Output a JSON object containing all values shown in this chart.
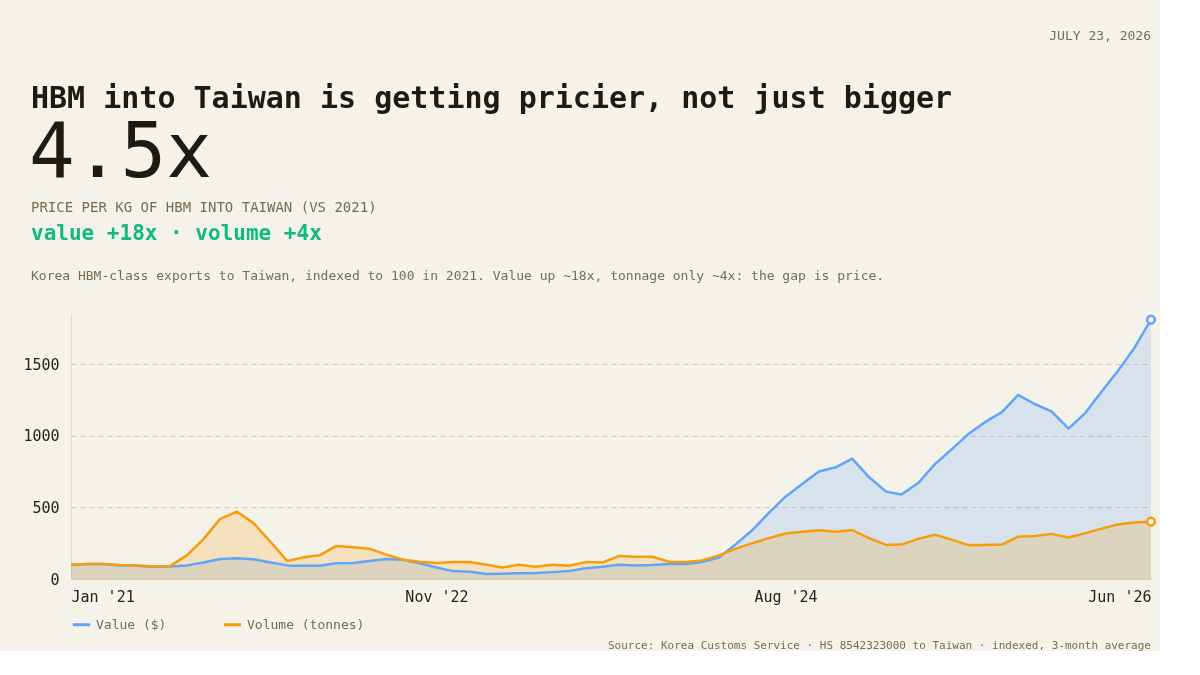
{
  "chart_data": {
    "type": "area",
    "title": "HBM into Taiwan is getting pricier, not just bigger",
    "annotations": [
      "JULY 23, 2026",
      "4.5x",
      "PRICE PER KG OF HBM INTO TAIWAN (VS 2021)",
      "value +18x · volume +4x",
      "Korea HBM-class exports to Taiwan, indexed to 100 in 2021. Value up ~18x, tonnage only ~4x: the gap is price.",
      "Source: Korea Customs Service · HS 8542323000 to Taiwan · indexed, 3-month average"
    ],
    "x": [
      "2021-01",
      "2021-02",
      "2021-03",
      "2021-04",
      "2021-05",
      "2021-06",
      "2021-07",
      "2021-08",
      "2021-09",
      "2021-10",
      "2021-11",
      "2021-12",
      "2022-01",
      "2022-02",
      "2022-03",
      "2022-04",
      "2022-05",
      "2022-06",
      "2022-07",
      "2022-08",
      "2022-09",
      "2022-10",
      "2022-11",
      "2022-12",
      "2023-01",
      "2023-02",
      "2023-03",
      "2023-04",
      "2023-05",
      "2023-06",
      "2023-07",
      "2023-08",
      "2023-09",
      "2023-10",
      "2023-11",
      "2023-12",
      "2024-01",
      "2024-02",
      "2024-03",
      "2024-04",
      "2024-05",
      "2024-06",
      "2024-07",
      "2024-08",
      "2024-09",
      "2024-10",
      "2024-11",
      "2024-12",
      "2025-01",
      "2025-02",
      "2025-03",
      "2025-04",
      "2025-05",
      "2025-06",
      "2025-07",
      "2025-08",
      "2025-09",
      "2025-10",
      "2025-11",
      "2025-12",
      "2026-01",
      "2026-02",
      "2026-03",
      "2026-04",
      "2026-05",
      "2026-06"
    ],
    "series": [
      {
        "name": "Value ($)",
        "color": "#60a5fa",
        "values": [
          100,
          104,
          104,
          95,
          92,
          85,
          88,
          95,
          115,
          140,
          145,
          138,
          115,
          95,
          93,
          93,
          110,
          112,
          125,
          140,
          135,
          110,
          80,
          55,
          50,
          35,
          37,
          40,
          42,
          48,
          55,
          75,
          85,
          100,
          95,
          98,
          105,
          105,
          118,
          150,
          240,
          340,
          460,
          575,
          665,
          750,
          780,
          840,
          710,
          610,
          590,
          670,
          800,
          905,
          1010,
          1095,
          1165,
          1285,
          1220,
          1170,
          1050,
          1160,
          1300,
          1450,
          1610,
          1810
        ]
      },
      {
        "name": "Volume (tonnes)",
        "color": "#f59e0b",
        "values": [
          100,
          104,
          104,
          98,
          95,
          88,
          90,
          165,
          280,
          420,
          470,
          390,
          260,
          125,
          150,
          165,
          230,
          222,
          212,
          170,
          135,
          120,
          112,
          118,
          118,
          100,
          80,
          100,
          85,
          100,
          92,
          118,
          115,
          160,
          155,
          155,
          120,
          118,
          130,
          165,
          210,
          250,
          285,
          318,
          330,
          340,
          330,
          342,
          285,
          238,
          240,
          280,
          310,
          275,
          238,
          238,
          240,
          295,
          300,
          315,
          290,
          320,
          350,
          380,
          395,
          400
        ]
      }
    ],
    "xlim": [
      "2021-01",
      "2026-06"
    ],
    "xticks": [
      {
        "value": "2021-01",
        "label": "Jan '21"
      },
      {
        "value": "2022-11",
        "label": "Nov '22"
      },
      {
        "value": "2024-08",
        "label": "Aug '24"
      },
      {
        "value": "2026-06",
        "label": "Jun '26"
      }
    ],
    "ylim": [
      0,
      1850
    ],
    "yticks": [
      0,
      500,
      1000,
      1500
    ],
    "grid": "y",
    "legend": "bottom left",
    "line_style": "solid"
  }
}
